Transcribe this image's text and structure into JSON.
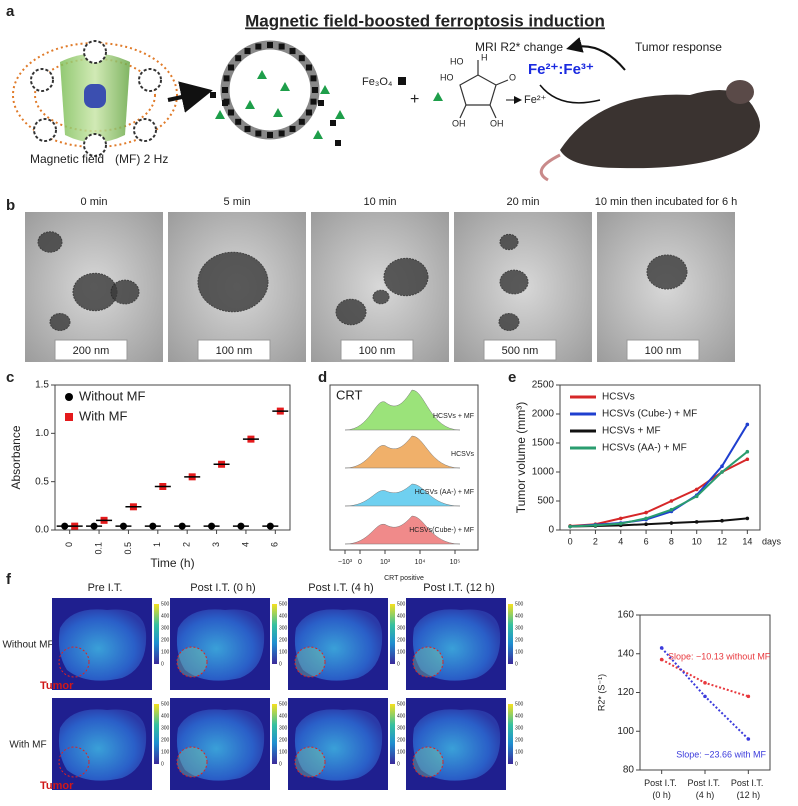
{
  "panels": {
    "a": {
      "letter": "a",
      "title": "Magnetic field-boosted ferroptosis induction",
      "mf_label": "Magnetic field",
      "mf_freq": "(MF) 2 Hz",
      "fe3o4": "Fe₃O₄",
      "plus": "+",
      "fe2": "Fe²⁺",
      "ho1": "HO",
      "ho2": "HO",
      "oh1": "OH",
      "oh2": "OH",
      "o": "O",
      "h": "H",
      "mri": "MRI R2* change",
      "tumor_response": "Tumor response",
      "ratio": "Fe²⁺:Fe³⁺"
    },
    "b": {
      "letter": "b",
      "images": [
        {
          "time": "0 min",
          "scale": "200 nm"
        },
        {
          "time": "5 min",
          "scale": "100 nm"
        },
        {
          "time": "10 min",
          "scale": "100 nm"
        },
        {
          "time": "20 min",
          "scale": "500 nm"
        },
        {
          "time": "10 min then incubated for 6 h",
          "scale": "100 nm"
        }
      ]
    },
    "c": {
      "letter": "c"
    },
    "d": {
      "letter": "d",
      "title": "CRT",
      "tracks": [
        "HCSVs + MF",
        "HCSVs",
        "HCSVs (AA-) + MF",
        "HCSVs(Cube-) + MF"
      ],
      "xticks": [
        "−10³",
        "0",
        "10³",
        "10⁴",
        "10⁵"
      ],
      "xlabel": "CRT positive"
    },
    "e": {
      "letter": "e"
    },
    "f": {
      "letter": "f",
      "columns": [
        "Pre I.T.",
        "Post I.T. (0 h)",
        "Post I.T. (4 h)",
        "Post I.T. (12 h)"
      ],
      "rows": [
        "Without MF",
        "With MF"
      ],
      "tumor": "Tumor",
      "colorbar_ticks": [
        0,
        100,
        200,
        300,
        400,
        500
      ]
    }
  },
  "chart_data": [
    {
      "type": "scatter",
      "xlabel": "Time (h)",
      "ylabel": "Absorbance",
      "categories": [
        "0",
        "0.1",
        "0.5",
        "1",
        "2",
        "3",
        "4",
        "6"
      ],
      "ylim": [
        0,
        1.5
      ],
      "yticks": [
        {
          "value": 0,
          "label": "0.0"
        },
        0.5,
        {
          "value": 1,
          "label": "1.0"
        },
        1.5
      ],
      "legend": "top-left",
      "series": [
        {
          "name": "Without MF",
          "color": "#000000",
          "marker": "circle",
          "values": [
            0.04,
            0.04,
            0.04,
            0.04,
            0.04,
            0.04,
            0.04,
            0.04
          ]
        },
        {
          "name": "With MF",
          "color": "#e41a1c",
          "marker": "square",
          "values": [
            0.04,
            0.1,
            0.24,
            0.45,
            0.55,
            0.68,
            0.94,
            1.23
          ]
        }
      ]
    },
    {
      "type": "line",
      "ylabel": "Tumor volume (mm³)",
      "xunit": "days",
      "x": [
        0,
        2,
        4,
        6,
        8,
        10,
        12,
        14
      ],
      "xlim": [
        -0.8,
        15
      ],
      "xticks": [
        0,
        2,
        4,
        6,
        8,
        10,
        12,
        14
      ],
      "ylim": [
        0,
        2500
      ],
      "yticks": [
        0,
        500,
        1000,
        1500,
        2000,
        2500
      ],
      "legend": "top-left",
      "series": [
        {
          "name": "HCSVs",
          "color": "#d62728",
          "values": [
            70,
            100,
            200,
            300,
            500,
            700,
            1000,
            1220
          ]
        },
        {
          "name": "HCSVs (Cube-) + MF",
          "color": "#1f3fcf",
          "values": [
            60,
            90,
            120,
            180,
            320,
            600,
            1100,
            1820
          ]
        },
        {
          "name": "HCSVs + MF",
          "color": "#111111",
          "values": [
            60,
            70,
            80,
            100,
            120,
            140,
            160,
            200
          ]
        },
        {
          "name": "HCSVs (AA-) + MF",
          "color": "#2a9d6f",
          "values": [
            60,
            80,
            110,
            200,
            350,
            580,
            1000,
            1350
          ]
        }
      ]
    },
    {
      "type": "line",
      "ylabel": "R2* (S⁻¹)",
      "categories": [
        "Post I.T. (0 h)",
        "Post I.T. (4 h)",
        "Post I.T. (12 h)"
      ],
      "ylim": [
        80,
        160
      ],
      "yticks": [
        80,
        100,
        120,
        140,
        160
      ],
      "annotations": [
        "Slope: −10.13 without MF",
        "Slope: −23.66 with MF"
      ],
      "series": [
        {
          "color": "#e8383d",
          "line_style": "dotted",
          "values": [
            137,
            125,
            118
          ]
        },
        {
          "color": "#3b3bdc",
          "line_style": "dotted",
          "values": [
            143,
            118,
            96
          ]
        }
      ]
    }
  ]
}
